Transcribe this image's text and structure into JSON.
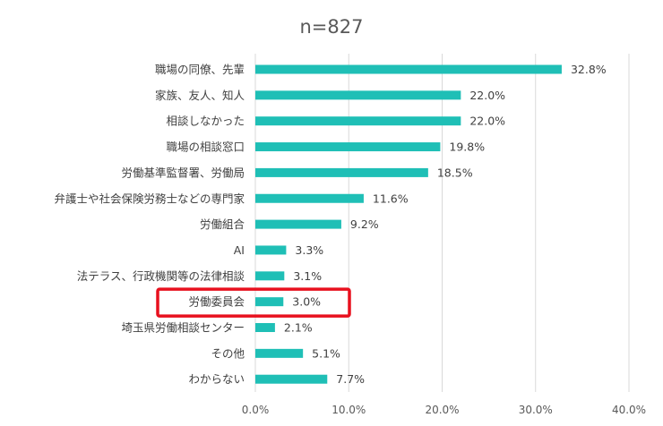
{
  "chart_data": {
    "type": "bar",
    "orientation": "horizontal",
    "title": "n=827",
    "categories": [
      "職場の同僚、先輩",
      "家族、友人、知人",
      "相談しなかった",
      "職場の相談窓口",
      "労働基準監督署、労働局",
      "弁護士や社会保険労務士などの専門家",
      "労働組合",
      "AI",
      "法テラス、行政機関等の法律相談",
      "労働委員会",
      "埼玉県労働相談センター",
      "その他",
      "わからない"
    ],
    "values": [
      32.8,
      22.0,
      22.0,
      19.8,
      18.5,
      11.6,
      9.2,
      3.3,
      3.1,
      3.0,
      2.1,
      5.1,
      7.7
    ],
    "value_labels": [
      "32.8%",
      "22.0%",
      "22.0%",
      "19.8%",
      "18.5%",
      "11.6%",
      "9.2%",
      "3.3%",
      "3.1%",
      "3.0%",
      "2.1%",
      "5.1%",
      "7.7%"
    ],
    "xlim": [
      0,
      40
    ],
    "xticks": [
      "0.0%",
      "10.0%",
      "20.0%",
      "30.0%",
      "40.0%"
    ],
    "grid": "vertical",
    "highlight_category": "労働委員会",
    "colors": {
      "bar": "#1fbfb6",
      "highlight": "#e8101e",
      "grid": "#d9d9d9"
    }
  }
}
